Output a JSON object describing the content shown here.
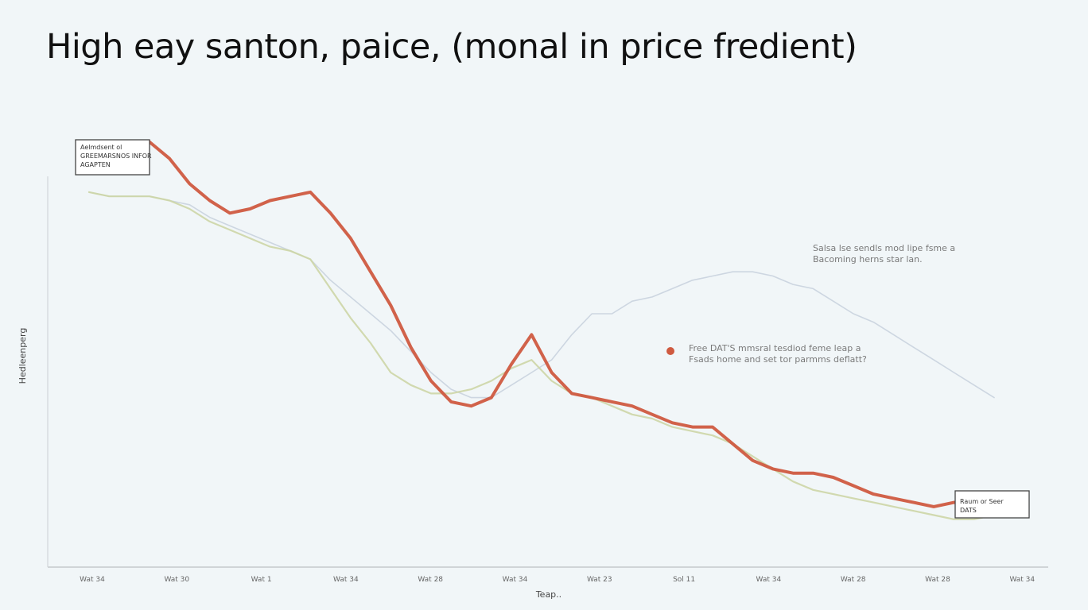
{
  "chart_data": {
    "type": "line",
    "title": "High eay santon, paice, (monal in price fredient)",
    "xlabel": "Teap..",
    "ylabel": "Hedleenperg",
    "x": [
      0,
      1,
      2,
      3,
      4,
      5,
      6,
      7,
      8,
      9,
      10,
      11,
      12,
      13,
      14,
      15,
      16,
      17,
      18,
      19,
      20,
      21,
      22,
      23,
      24,
      25,
      26,
      27,
      28,
      29,
      30,
      31,
      32,
      33,
      34,
      35,
      36,
      37,
      38,
      39,
      40,
      41,
      42,
      43,
      44,
      45
    ],
    "tick_labels": [
      "Wat 34",
      "Wat 30",
      "Wat 1",
      "Wat 34",
      "Wat 28",
      "Wat 34",
      "Wat 23",
      "Sol 11",
      "Wat 34",
      "Wat 28",
      "Wat 28",
      "Wat 34"
    ],
    "xlim": [
      0,
      45
    ],
    "ylim": [
      0,
      100
    ],
    "series": [
      {
        "color": "#cf5a40",
        "values": [
          97,
          98,
          96,
          98,
          94,
          88,
          84,
          81,
          82,
          84,
          85,
          86,
          81,
          75,
          67,
          59,
          49,
          41,
          36,
          35,
          37,
          45,
          52,
          43,
          38,
          37,
          36,
          35,
          33,
          31,
          30,
          30,
          26,
          22,
          20,
          19,
          19,
          18,
          16,
          14,
          13,
          12,
          11,
          12,
          12,
          12
        ]
      },
      {
        "color": "#cdd6a6",
        "values": [
          86,
          85,
          85,
          85,
          84,
          82,
          79,
          77,
          75,
          73,
          72,
          70,
          63,
          56,
          50,
          43,
          40,
          38,
          38,
          39,
          41,
          44,
          46,
          41,
          38,
          37,
          35,
          33,
          32,
          30,
          29,
          28,
          26,
          23,
          20,
          17,
          15,
          14,
          13,
          12,
          11,
          10,
          9,
          8,
          8,
          9
        ]
      },
      {
        "color": "#c9d3de",
        "values": [
          86,
          85,
          85,
          85,
          84,
          83,
          80,
          78,
          76,
          74,
          72,
          70,
          65,
          61,
          57,
          53,
          48,
          43,
          39,
          37,
          37,
          40,
          43,
          46,
          52,
          57,
          57,
          60,
          61,
          63,
          65,
          66,
          67,
          67,
          66,
          64,
          63,
          60,
          57,
          55,
          52,
          49,
          46,
          43,
          40,
          37
        ]
      }
    ],
    "annotations": [
      {
        "text": [
          "Salsa lse sendls mod lipe fsme a",
          "Bacoming herns star lan."
        ]
      },
      {
        "text": [
          "Free DAT'S mmsral tesdiod feme leap a",
          "Fsads home and set tor parmms deflatt?"
        ]
      }
    ],
    "legend_boxes": [
      {
        "text": [
          "Aelmdsent ol",
          "GREEMARSNOS INFOR",
          "AGAPTEN"
        ]
      },
      {
        "text": [
          "Raum or Seer",
          "DATS"
        ]
      }
    ],
    "grid": false
  }
}
